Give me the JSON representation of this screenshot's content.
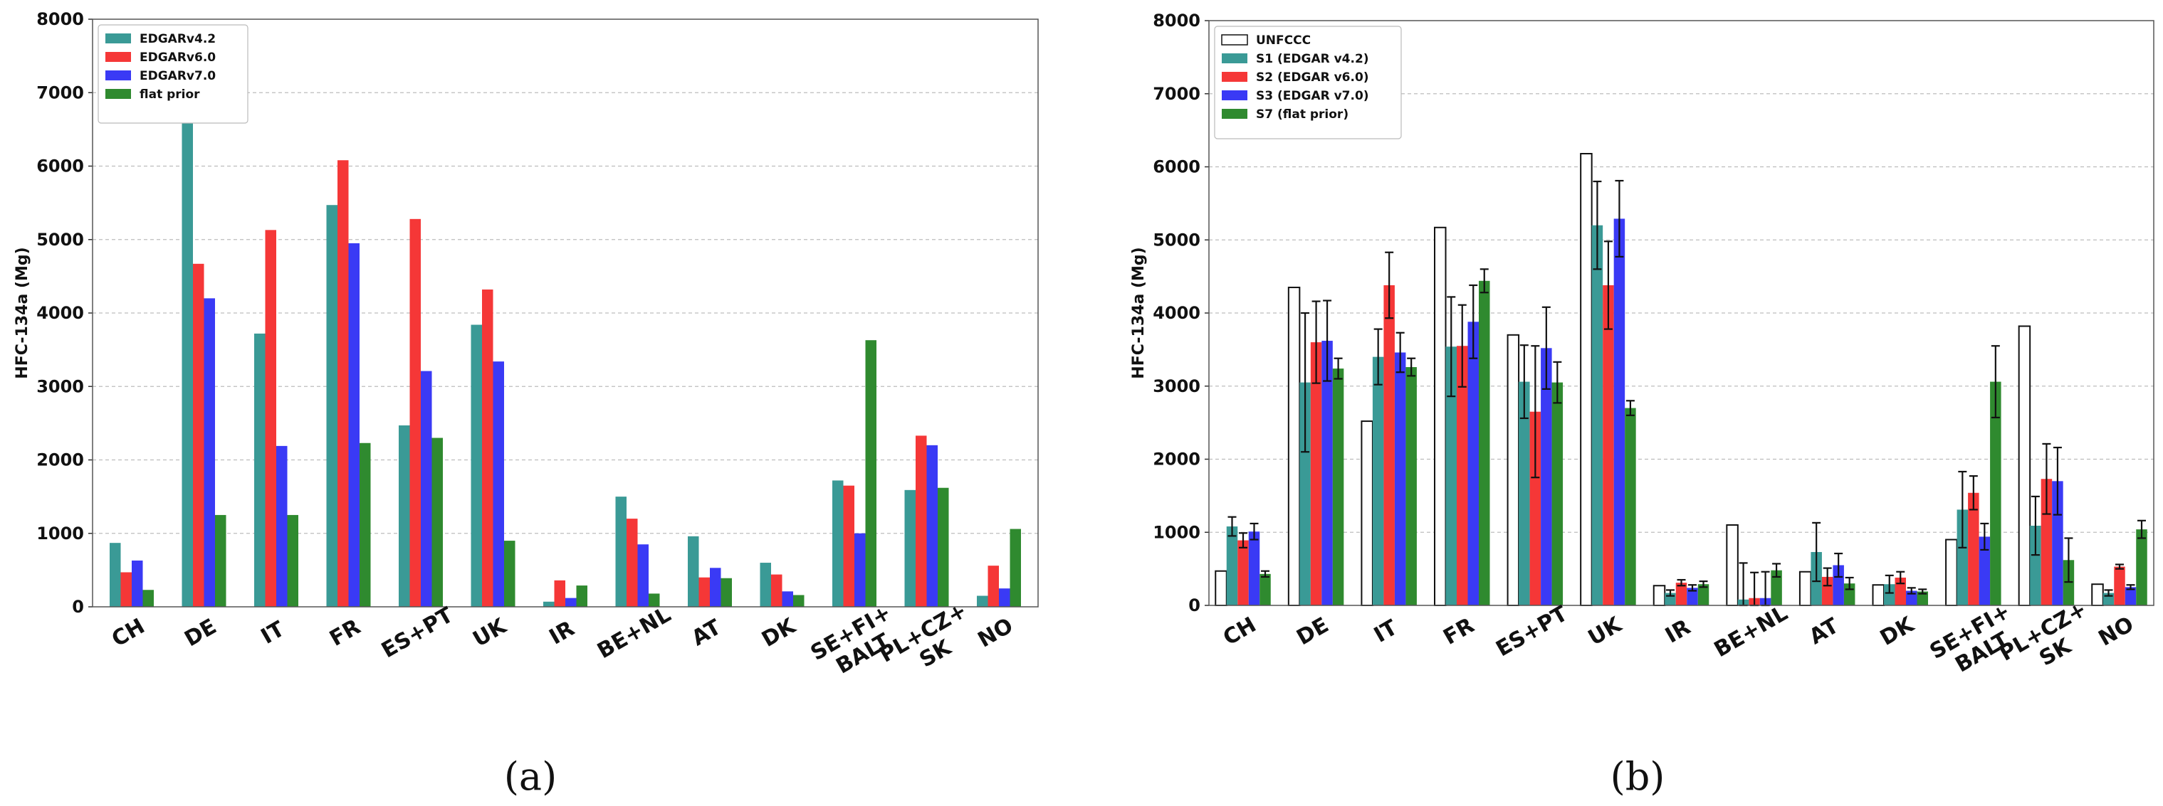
{
  "chart_data": [
    {
      "type": "bar",
      "panel_caption": "(a)",
      "ylabel": "HFC-134a (Mg)",
      "ylim": [
        0,
        8000
      ],
      "yticks": [
        0,
        1000,
        2000,
        3000,
        4000,
        5000,
        6000,
        7000,
        8000
      ],
      "grid": true,
      "legend_position": "top-left",
      "categories": [
        [
          "CH"
        ],
        [
          "DE"
        ],
        [
          "IT"
        ],
        [
          "FR"
        ],
        [
          "ES+PT"
        ],
        [
          "UK"
        ],
        [
          "IR"
        ],
        [
          "BE+NL"
        ],
        [
          "AT"
        ],
        [
          "DK"
        ],
        [
          "SE+FI+",
          "BALT"
        ],
        [
          "PL+CZ+",
          "SK"
        ],
        [
          "NO"
        ]
      ],
      "series": [
        {
          "name": "EDGARv4.2",
          "color": "#3a9a96",
          "values": [
            870,
            6700,
            3720,
            5470,
            2470,
            3840,
            70,
            1500,
            960,
            600,
            1720,
            1590,
            150
          ]
        },
        {
          "name": "EDGARv6.0",
          "color": "#f53737",
          "values": [
            470,
            4670,
            5130,
            6080,
            5280,
            4320,
            360,
            1200,
            400,
            440,
            1650,
            2330,
            560
          ]
        },
        {
          "name": "EDGARv7.0",
          "color": "#3a3af5",
          "values": [
            630,
            4200,
            2190,
            4950,
            3210,
            3340,
            120,
            850,
            530,
            210,
            1000,
            2200,
            250
          ]
        },
        {
          "name": "flat prior",
          "color": "#2f8a2f",
          "values": [
            230,
            1250,
            1250,
            2230,
            2300,
            900,
            290,
            180,
            390,
            160,
            3630,
            1620,
            1060
          ]
        }
      ]
    },
    {
      "type": "bar",
      "panel_caption": "(b)",
      "ylabel": "HFC-134a (Mg)",
      "ylim": [
        0,
        8000
      ],
      "yticks": [
        0,
        1000,
        2000,
        3000,
        4000,
        5000,
        6000,
        7000,
        8000
      ],
      "grid": true,
      "legend_position": "top-left",
      "categories": [
        [
          "CH"
        ],
        [
          "DE"
        ],
        [
          "IT"
        ],
        [
          "FR"
        ],
        [
          "ES+PT"
        ],
        [
          "UK"
        ],
        [
          "IR"
        ],
        [
          "BE+NL"
        ],
        [
          "AT"
        ],
        [
          "DK"
        ],
        [
          "SE+FI+",
          "BALT"
        ],
        [
          "PL+CZ+",
          "SK"
        ],
        [
          "NO"
        ]
      ],
      "series": [
        {
          "name": "UNFCCC",
          "color": "#ffffff",
          "values": [
            470,
            4350,
            2520,
            5170,
            3700,
            6180,
            270,
            1100,
            460,
            280,
            900,
            3820,
            290
          ],
          "errors": []
        },
        {
          "name": "S1 (EDGAR v4.2)",
          "color": "#3a9a96",
          "values": [
            1080,
            3050,
            3400,
            3540,
            3060,
            5200,
            170,
            80,
            730,
            290,
            1310,
            1090,
            170
          ],
          "errors": [
            130,
            950,
            380,
            680,
            500,
            600,
            40,
            500,
            400,
            120,
            520,
            400,
            40
          ]
        },
        {
          "name": "S2 (EDGAR v6.0)",
          "color": "#f53737",
          "values": [
            890,
            3600,
            4380,
            3550,
            2650,
            4380,
            310,
            100,
            390,
            380,
            1540,
            1730,
            530
          ],
          "errors": [
            100,
            560,
            450,
            560,
            900,
            600,
            40,
            350,
            120,
            80,
            230,
            480,
            30
          ]
        },
        {
          "name": "S3 (EDGAR v7.0)",
          "color": "#3a3af5",
          "values": [
            1010,
            3620,
            3460,
            3880,
            3520,
            5290,
            240,
            100,
            550,
            200,
            940,
            1700,
            250
          ],
          "errors": [
            110,
            550,
            270,
            500,
            560,
            520,
            40,
            360,
            160,
            40,
            180,
            460,
            30
          ]
        },
        {
          "name": "S7 (flat prior)",
          "color": "#2f8a2f",
          "values": [
            430,
            3240,
            3260,
            4440,
            3050,
            2700,
            290,
            480,
            300,
            190,
            3060,
            620,
            1040
          ],
          "errors": [
            40,
            140,
            120,
            160,
            280,
            100,
            40,
            90,
            80,
            30,
            490,
            300,
            120
          ]
        }
      ]
    }
  ]
}
